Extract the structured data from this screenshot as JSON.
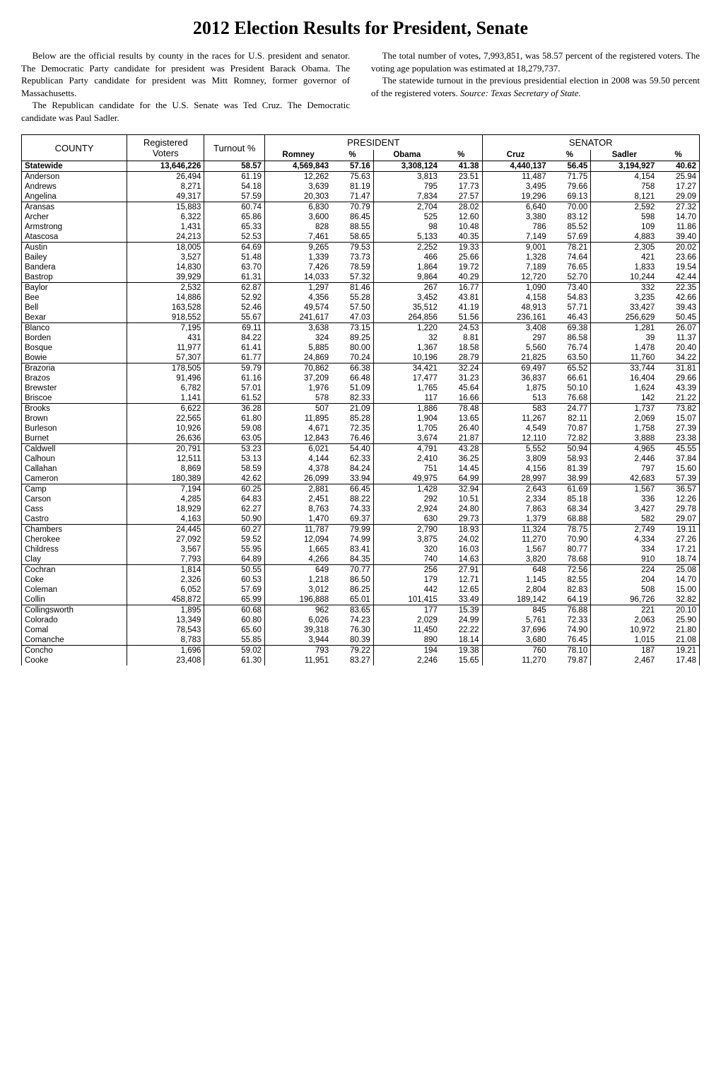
{
  "title": "2012 Election Results for President, Senate",
  "intro_left_p1": "Below are the official results by county in the races for U.S. president and senator. The Democratic Party candidate for president was President Barack Obama. The Republican Party candidate for president was Mitt Romney, former governor of Massachusetts.",
  "intro_left_p2": "The Republican candidate for the U.S. Senate was Ted Cruz. The Democratic candidate was Paul Sadler.",
  "intro_right_p1": "The total number of votes, 7,993,851, was 58.57 percent of the registered voters. The voting age population was estimated at 18,279,737.",
  "intro_right_p2": "The statewide turnout in the previous presidential election in 2008 was 59.50 percent of the registered voters. Source: Texas Secretary of State.",
  "headers": {
    "county": "COUNTY",
    "registered": "Registered Voters",
    "turnout": "Turnout %",
    "president": "PRESIDENT",
    "senator": "SENATOR",
    "romney": "Romney",
    "obama": "Obama",
    "cruz": "Cruz",
    "sadler": "Sadler",
    "pct": "%"
  },
  "statewide": {
    "name": "Statewide",
    "registered": "13,646,226",
    "turnout": "58.57",
    "romney": "4,569,843",
    "romney_pct": "57.16",
    "obama": "3,308,124",
    "obama_pct": "41.38",
    "cruz": "4,440,137",
    "cruz_pct": "56.45",
    "sadler": "3,194,927",
    "sadler_pct": "40.62"
  },
  "rows": [
    {
      "c": "Anderson",
      "r": "26,494",
      "t": "61.19",
      "ro": "12,262",
      "rop": "75.63",
      "o": "3,813",
      "op": "23.51",
      "cz": "11,487",
      "czp": "71.75",
      "s": "4,154",
      "sp": "25.94"
    },
    {
      "c": "Andrews",
      "r": "8,271",
      "t": "54.18",
      "ro": "3,639",
      "rop": "81.19",
      "o": "795",
      "op": "17.73",
      "cz": "3,495",
      "czp": "79.66",
      "s": "758",
      "sp": "17.27"
    },
    {
      "c": "Angelina",
      "r": "49,317",
      "t": "57.59",
      "ro": "20,303",
      "rop": "71.47",
      "o": "7,834",
      "op": "27.57",
      "cz": "19,296",
      "czp": "69.13",
      "s": "8,121",
      "sp": "29.09",
      "sep": true
    },
    {
      "c": "Aransas",
      "r": "15,883",
      "t": "60.74",
      "ro": "6,830",
      "rop": "70.79",
      "o": "2,704",
      "op": "28.02",
      "cz": "6,640",
      "czp": "70.00",
      "s": "2,592",
      "sp": "27.32"
    },
    {
      "c": "Archer",
      "r": "6,322",
      "t": "65.86",
      "ro": "3,600",
      "rop": "86.45",
      "o": "525",
      "op": "12.60",
      "cz": "3,380",
      "czp": "83.12",
      "s": "598",
      "sp": "14.70"
    },
    {
      "c": "Armstrong",
      "r": "1,431",
      "t": "65.33",
      "ro": "828",
      "rop": "88.55",
      "o": "98",
      "op": "10.48",
      "cz": "786",
      "czp": "85.52",
      "s": "109",
      "sp": "11.86"
    },
    {
      "c": "Atascosa",
      "r": "24,213",
      "t": "52.53",
      "ro": "7,461",
      "rop": "58.65",
      "o": "5,133",
      "op": "40.35",
      "cz": "7,149",
      "czp": "57.69",
      "s": "4,883",
      "sp": "39.40",
      "sep": true
    },
    {
      "c": "Austin",
      "r": "18,005",
      "t": "64.69",
      "ro": "9,265",
      "rop": "79.53",
      "o": "2,252",
      "op": "19.33",
      "cz": "9,001",
      "czp": "78.21",
      "s": "2,305",
      "sp": "20.02"
    },
    {
      "c": "Bailey",
      "r": "3,527",
      "t": "51.48",
      "ro": "1,339",
      "rop": "73.73",
      "o": "466",
      "op": "25.66",
      "cz": "1,328",
      "czp": "74.64",
      "s": "421",
      "sp": "23.66"
    },
    {
      "c": "Bandera",
      "r": "14,830",
      "t": "63.70",
      "ro": "7,426",
      "rop": "78.59",
      "o": "1,864",
      "op": "19.72",
      "cz": "7,189",
      "czp": "76.65",
      "s": "1,833",
      "sp": "19.54"
    },
    {
      "c": "Bastrop",
      "r": "39,929",
      "t": "61.31",
      "ro": "14,033",
      "rop": "57.32",
      "o": "9,864",
      "op": "40.29",
      "cz": "12,720",
      "czp": "52.70",
      "s": "10,244",
      "sp": "42.44",
      "sep": true
    },
    {
      "c": "Baylor",
      "r": "2,532",
      "t": "62.87",
      "ro": "1,297",
      "rop": "81.46",
      "o": "267",
      "op": "16.77",
      "cz": "1,090",
      "czp": "73.40",
      "s": "332",
      "sp": "22.35"
    },
    {
      "c": "Bee",
      "r": "14,886",
      "t": "52.92",
      "ro": "4,356",
      "rop": "55.28",
      "o": "3,452",
      "op": "43.81",
      "cz": "4,158",
      "czp": "54.83",
      "s": "3,235",
      "sp": "42.66"
    },
    {
      "c": "Bell",
      "r": "163,528",
      "t": "52.46",
      "ro": "49,574",
      "rop": "57.50",
      "o": "35,512",
      "op": "41.19",
      "cz": "48,913",
      "czp": "57.71",
      "s": "33,427",
      "sp": "39.43"
    },
    {
      "c": "Bexar",
      "r": "918,552",
      "t": "55.67",
      "ro": "241,617",
      "rop": "47.03",
      "o": "264,856",
      "op": "51.56",
      "cz": "236,161",
      "czp": "46.43",
      "s": "256,629",
      "sp": "50.45",
      "sep": true
    },
    {
      "c": "Blanco",
      "r": "7,195",
      "t": "69.11",
      "ro": "3,638",
      "rop": "73.15",
      "o": "1,220",
      "op": "24.53",
      "cz": "3,408",
      "czp": "69.38",
      "s": "1,281",
      "sp": "26.07"
    },
    {
      "c": "Borden",
      "r": "431",
      "t": "84.22",
      "ro": "324",
      "rop": "89.25",
      "o": "32",
      "op": "8.81",
      "cz": "297",
      "czp": "86.58",
      "s": "39",
      "sp": "11.37"
    },
    {
      "c": "Bosque",
      "r": "11,977",
      "t": "61.41",
      "ro": "5,885",
      "rop": "80.00",
      "o": "1,367",
      "op": "18.58",
      "cz": "5,560",
      "czp": "76.74",
      "s": "1,478",
      "sp": "20.40"
    },
    {
      "c": "Bowie",
      "r": "57,307",
      "t": "61.77",
      "ro": "24,869",
      "rop": "70.24",
      "o": "10,196",
      "op": "28.79",
      "cz": "21,825",
      "czp": "63.50",
      "s": "11,760",
      "sp": "34.22",
      "sep": true
    },
    {
      "c": "Brazoria",
      "r": "178,505",
      "t": "59.79",
      "ro": "70,862",
      "rop": "66.38",
      "o": "34,421",
      "op": "32.24",
      "cz": "69,497",
      "czp": "65.52",
      "s": "33,744",
      "sp": "31.81"
    },
    {
      "c": "Brazos",
      "r": "91,496",
      "t": "61.16",
      "ro": "37,209",
      "rop": "66.48",
      "o": "17,477",
      "op": "31.23",
      "cz": "36,837",
      "czp": "66.61",
      "s": "16,404",
      "sp": "29.66"
    },
    {
      "c": "Brewster",
      "r": "6,782",
      "t": "57.01",
      "ro": "1,976",
      "rop": "51.09",
      "o": "1,765",
      "op": "45.64",
      "cz": "1,875",
      "czp": "50.10",
      "s": "1,624",
      "sp": "43.39"
    },
    {
      "c": "Briscoe",
      "r": "1,141",
      "t": "61.52",
      "ro": "578",
      "rop": "82.33",
      "o": "117",
      "op": "16.66",
      "cz": "513",
      "czp": "76.68",
      "s": "142",
      "sp": "21.22",
      "sep": true
    },
    {
      "c": "Brooks",
      "r": "6,622",
      "t": "36.28",
      "ro": "507",
      "rop": "21.09",
      "o": "1,886",
      "op": "78.48",
      "cz": "583",
      "czp": "24.77",
      "s": "1,737",
      "sp": "73.82"
    },
    {
      "c": "Brown",
      "r": "22,565",
      "t": "61.80",
      "ro": "11,895",
      "rop": "85.28",
      "o": "1,904",
      "op": "13.65",
      "cz": "11,267",
      "czp": "82.11",
      "s": "2,069",
      "sp": "15.07"
    },
    {
      "c": "Burleson",
      "r": "10,926",
      "t": "59.08",
      "ro": "4,671",
      "rop": "72.35",
      "o": "1,705",
      "op": "26.40",
      "cz": "4,549",
      "czp": "70.87",
      "s": "1,758",
      "sp": "27.39"
    },
    {
      "c": "Burnet",
      "r": "26,636",
      "t": "63.05",
      "ro": "12,843",
      "rop": "76.46",
      "o": "3,674",
      "op": "21.87",
      "cz": "12,110",
      "czp": "72.82",
      "s": "3,888",
      "sp": "23.38",
      "sep": true
    },
    {
      "c": "Caldwell",
      "r": "20,791",
      "t": "53.23",
      "ro": "6,021",
      "rop": "54.40",
      "o": "4,791",
      "op": "43.28",
      "cz": "5,552",
      "czp": "50.94",
      "s": "4,965",
      "sp": "45.55"
    },
    {
      "c": "Calhoun",
      "r": "12,511",
      "t": "53.13",
      "ro": "4,144",
      "rop": "62.33",
      "o": "2,410",
      "op": "36.25",
      "cz": "3,809",
      "czp": "58.93",
      "s": "2,446",
      "sp": "37.84"
    },
    {
      "c": "Callahan",
      "r": "8,869",
      "t": "58.59",
      "ro": "4,378",
      "rop": "84.24",
      "o": "751",
      "op": "14.45",
      "cz": "4,156",
      "czp": "81.39",
      "s": "797",
      "sp": "15.60"
    },
    {
      "c": "Cameron",
      "r": "180,389",
      "t": "42.62",
      "ro": "26,099",
      "rop": "33.94",
      "o": "49,975",
      "op": "64.99",
      "cz": "28,997",
      "czp": "38.99",
      "s": "42,683",
      "sp": "57.39",
      "sep": true
    },
    {
      "c": "Camp",
      "r": "7,194",
      "t": "60.25",
      "ro": "2,881",
      "rop": "66.45",
      "o": "1,428",
      "op": "32.94",
      "cz": "2,643",
      "czp": "61.69",
      "s": "1,567",
      "sp": "36.57"
    },
    {
      "c": "Carson",
      "r": "4,285",
      "t": "64.83",
      "ro": "2,451",
      "rop": "88.22",
      "o": "292",
      "op": "10.51",
      "cz": "2,334",
      "czp": "85.18",
      "s": "336",
      "sp": "12.26"
    },
    {
      "c": "Cass",
      "r": "18,929",
      "t": "62.27",
      "ro": "8,763",
      "rop": "74.33",
      "o": "2,924",
      "op": "24.80",
      "cz": "7,863",
      "czp": "68.34",
      "s": "3,427",
      "sp": "29.78"
    },
    {
      "c": "Castro",
      "r": "4,163",
      "t": "50.90",
      "ro": "1,470",
      "rop": "69.37",
      "o": "630",
      "op": "29.73",
      "cz": "1,379",
      "czp": "68.88",
      "s": "582",
      "sp": "29.07",
      "sep": true
    },
    {
      "c": "Chambers",
      "r": "24,445",
      "t": "60.27",
      "ro": "11,787",
      "rop": "79.99",
      "o": "2,790",
      "op": "18.93",
      "cz": "11,324",
      "czp": "78.75",
      "s": "2,749",
      "sp": "19.11"
    },
    {
      "c": "Cherokee",
      "r": "27,092",
      "t": "59.52",
      "ro": "12,094",
      "rop": "74.99",
      "o": "3,875",
      "op": "24.02",
      "cz": "11,270",
      "czp": "70.90",
      "s": "4,334",
      "sp": "27.26"
    },
    {
      "c": "Childress",
      "r": "3,567",
      "t": "55.95",
      "ro": "1,665",
      "rop": "83.41",
      "o": "320",
      "op": "16.03",
      "cz": "1,567",
      "czp": "80.77",
      "s": "334",
      "sp": "17.21"
    },
    {
      "c": "Clay",
      "r": "7,793",
      "t": "64.89",
      "ro": "4,266",
      "rop": "84.35",
      "o": "740",
      "op": "14.63",
      "cz": "3,820",
      "czp": "78.68",
      "s": "910",
      "sp": "18.74",
      "sep": true
    },
    {
      "c": "Cochran",
      "r": "1,814",
      "t": "50.55",
      "ro": "649",
      "rop": "70.77",
      "o": "256",
      "op": "27.91",
      "cz": "648",
      "czp": "72.56",
      "s": "224",
      "sp": "25.08"
    },
    {
      "c": "Coke",
      "r": "2,326",
      "t": "60.53",
      "ro": "1,218",
      "rop": "86.50",
      "o": "179",
      "op": "12.71",
      "cz": "1,145",
      "czp": "82.55",
      "s": "204",
      "sp": "14.70"
    },
    {
      "c": "Coleman",
      "r": "6,052",
      "t": "57.69",
      "ro": "3,012",
      "rop": "86.25",
      "o": "442",
      "op": "12.65",
      "cz": "2,804",
      "czp": "82.83",
      "s": "508",
      "sp": "15.00"
    },
    {
      "c": "Collin",
      "r": "458,872",
      "t": "65.99",
      "ro": "196,888",
      "rop": "65.01",
      "o": "101,415",
      "op": "33.49",
      "cz": "189,142",
      "czp": "64.19",
      "s": "96,726",
      "sp": "32.82",
      "sep": true
    },
    {
      "c": "Collingsworth",
      "r": "1,895",
      "t": "60.68",
      "ro": "962",
      "rop": "83.65",
      "o": "177",
      "op": "15.39",
      "cz": "845",
      "czp": "76.88",
      "s": "221",
      "sp": "20.10"
    },
    {
      "c": "Colorado",
      "r": "13,349",
      "t": "60.80",
      "ro": "6,026",
      "rop": "74.23",
      "o": "2,029",
      "op": "24.99",
      "cz": "5,761",
      "czp": "72.33",
      "s": "2,063",
      "sp": "25.90"
    },
    {
      "c": "Comal",
      "r": "78,543",
      "t": "65.60",
      "ro": "39,318",
      "rop": "76.30",
      "o": "11,450",
      "op": "22.22",
      "cz": "37,696",
      "czp": "74.90",
      "s": "10,972",
      "sp": "21.80"
    },
    {
      "c": "Comanche",
      "r": "8,783",
      "t": "55.85",
      "ro": "3,944",
      "rop": "80.39",
      "o": "890",
      "op": "18.14",
      "cz": "3,680",
      "czp": "76.45",
      "s": "1,015",
      "sp": "21.08",
      "sep": true
    },
    {
      "c": "Concho",
      "r": "1,696",
      "t": "59.02",
      "ro": "793",
      "rop": "79.22",
      "o": "194",
      "op": "19.38",
      "cz": "760",
      "czp": "78.10",
      "s": "187",
      "sp": "19.21"
    },
    {
      "c": "Cooke",
      "r": "23,408",
      "t": "61.30",
      "ro": "11,951",
      "rop": "83.27",
      "o": "2,246",
      "op": "15.65",
      "cz": "11,270",
      "czp": "79.87",
      "s": "2,467",
      "sp": "17.48"
    }
  ]
}
